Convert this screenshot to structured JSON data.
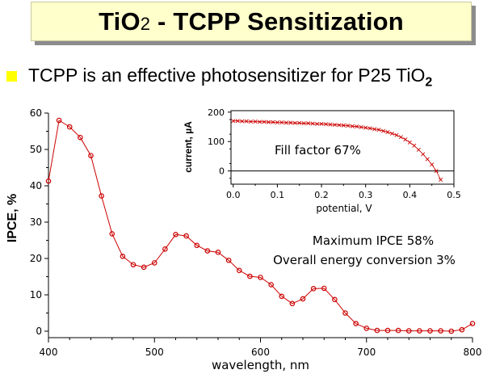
{
  "slide": {
    "title_main": "TiO",
    "title_sub": "2",
    "title_rest": " - TCPP Sensitization",
    "bullet_text": "TCPP is an effective photosensitizer for P25 TiO",
    "bullet_sub": "2",
    "colors": {
      "bullet": "#ffff00",
      "title_bg": "#ffffcc",
      "series": "#cc0000"
    }
  },
  "chart_data": [
    {
      "type": "line",
      "xlabel": "wavelength, nm",
      "ylabel": "IPCE, %",
      "xlim": [
        400,
        800
      ],
      "ylim": [
        0,
        60
      ],
      "xticks": [
        400,
        500,
        600,
        700,
        800
      ],
      "yticks": [
        0,
        10,
        20,
        30,
        40,
        50,
        60
      ],
      "marker": "circle",
      "grid": false,
      "series": [
        {
          "x": [
            400,
            410,
            420,
            430,
            440,
            450,
            460,
            470,
            480,
            490,
            500,
            510,
            520,
            530,
            540,
            550,
            560,
            570,
            580,
            590,
            600,
            610,
            620,
            630,
            640,
            650,
            660,
            670,
            680,
            690,
            700,
            710,
            720,
            730,
            740,
            750,
            760,
            770,
            780,
            790,
            800
          ],
          "values": [
            41.3,
            58,
            56.2,
            53.3,
            48.3,
            37.2,
            26.8,
            20.6,
            18.3,
            17.6,
            18.8,
            22.6,
            26.6,
            26.2,
            23.6,
            22.1,
            21.7,
            19.5,
            16.7,
            15.1,
            14.8,
            12.8,
            9.6,
            7.6,
            8.9,
            11.7,
            11.8,
            8.7,
            5.0,
            2.1,
            0.8,
            0.2,
            0.2,
            0.2,
            0.1,
            0.1,
            0.1,
            0.1,
            0.0,
            0.4,
            2.1
          ]
        }
      ],
      "annotations": [
        "Maximum IPCE 58%",
        "Overall energy conversion 3%"
      ]
    },
    {
      "type": "line",
      "xlabel": "potential, V",
      "ylabel": "current, µA",
      "xlim": [
        -0.005,
        0.5
      ],
      "ylim": [
        -45,
        205
      ],
      "xticks": [
        "0.0",
        "0.1",
        "0.2",
        "0.3",
        "0.4",
        "0.5"
      ],
      "yticks": [
        "200",
        "100",
        "0"
      ],
      "marker": "cross",
      "zero_line": true,
      "series": [
        {
          "x": [
            0.0,
            0.01,
            0.02,
            0.03,
            0.04,
            0.05,
            0.06,
            0.07,
            0.08,
            0.09,
            0.1,
            0.11,
            0.12,
            0.13,
            0.14,
            0.15,
            0.16,
            0.17,
            0.18,
            0.19,
            0.2,
            0.21,
            0.22,
            0.23,
            0.24,
            0.25,
            0.26,
            0.27,
            0.28,
            0.29,
            0.3,
            0.31,
            0.32,
            0.33,
            0.34,
            0.35,
            0.36,
            0.37,
            0.38,
            0.39,
            0.4,
            0.41,
            0.42,
            0.43,
            0.44,
            0.45,
            0.46,
            0.47
          ],
          "values": [
            170,
            170,
            169,
            169,
            168,
            168,
            167,
            167,
            166,
            166,
            165,
            165,
            164,
            164,
            163,
            163,
            162,
            162,
            161,
            160,
            160,
            159,
            158,
            157,
            156,
            155,
            154,
            152,
            151,
            149,
            147,
            145,
            142,
            140,
            136,
            132,
            127,
            122,
            115,
            107,
            97,
            86,
            72,
            57,
            40,
            22,
            0,
            -30
          ]
        }
      ],
      "annotations": [
        "Fill factor 67%"
      ]
    }
  ]
}
